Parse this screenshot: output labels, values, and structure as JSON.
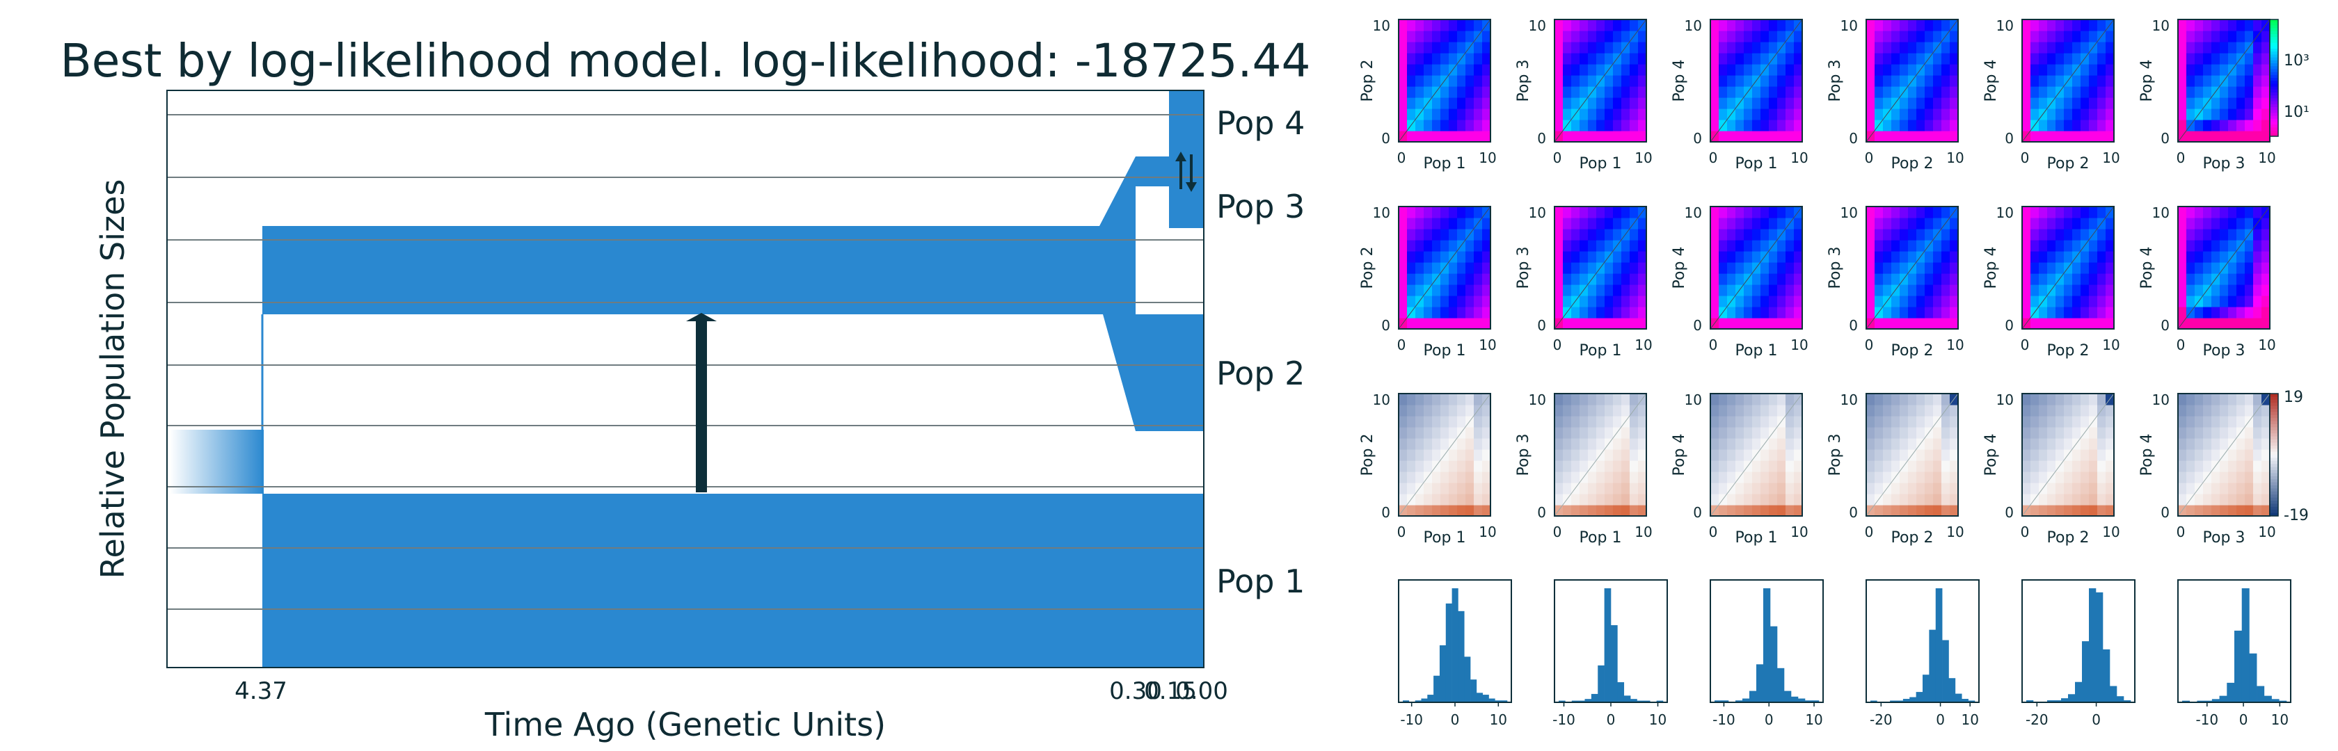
{
  "colors": {
    "pop_fill": "#2a88d0",
    "arrow": "#0d2f3a",
    "line": "#0d2f3a",
    "text": "#0f2b33",
    "gray_line": "#6f7c80"
  },
  "chart_data": [
    {
      "type": "population-history",
      "title": "Best by log-likelihood model. log-likelihood: -18725.44",
      "xlabel": "Time Ago (Genetic Units)",
      "ylabel": "Relative Population Sizes",
      "xtick_labels": [
        "4.37",
        "0.30",
        "0.15",
        "0.00"
      ],
      "populations": [
        "Pop 1",
        "Pop 2",
        "Pop 3",
        "Pop 4"
      ],
      "events": {
        "ancestral_split_time": 4.37,
        "migration_pop1_to_pop2": true,
        "split_pop2_pop3": 0.3,
        "split_pop3_pop4": 0.15,
        "present": 0.0
      }
    },
    {
      "type": "heatmap",
      "panel": "observed 2D SFS",
      "pairs": [
        {
          "x": "Pop 1",
          "y": "Pop 2"
        },
        {
          "x": "Pop 1",
          "y": "Pop 3"
        },
        {
          "x": "Pop 1",
          "y": "Pop 4"
        },
        {
          "x": "Pop 2",
          "y": "Pop 3"
        },
        {
          "x": "Pop 2",
          "y": "Pop 4"
        },
        {
          "x": "Pop 3",
          "y": "Pop 4"
        }
      ],
      "tick_labels": [
        "0",
        "10"
      ],
      "colorbar_labels": [
        "10³",
        "10¹"
      ]
    },
    {
      "type": "heatmap",
      "panel": "model 2D SFS",
      "pairs": [
        {
          "x": "Pop 1",
          "y": "Pop 2"
        },
        {
          "x": "Pop 1",
          "y": "Pop 3"
        },
        {
          "x": "Pop 1",
          "y": "Pop 4"
        },
        {
          "x": "Pop 2",
          "y": "Pop 3"
        },
        {
          "x": "Pop 2",
          "y": "Pop 4"
        },
        {
          "x": "Pop 3",
          "y": "Pop 4"
        }
      ],
      "tick_labels": [
        "0",
        "10"
      ]
    },
    {
      "type": "heatmap",
      "panel": "residuals",
      "pairs": [
        {
          "x": "Pop 1",
          "y": "Pop 2"
        },
        {
          "x": "Pop 1",
          "y": "Pop 3"
        },
        {
          "x": "Pop 1",
          "y": "Pop 4"
        },
        {
          "x": "Pop 2",
          "y": "Pop 3"
        },
        {
          "x": "Pop 2",
          "y": "Pop 4"
        },
        {
          "x": "Pop 3",
          "y": "Pop 4"
        }
      ],
      "tick_labels": [
        "0",
        "10"
      ],
      "colorbar_labels": [
        "19",
        "-19"
      ]
    },
    {
      "type": "bar",
      "panel": "residual histograms",
      "histograms": [
        {
          "xlim": [
            -13,
            13
          ],
          "xticks": [
            "-10",
            "0",
            "10"
          ],
          "values": [
            1,
            0,
            1,
            2,
            4,
            14,
            30,
            52,
            60,
            48,
            24,
            12,
            5,
            4,
            2,
            1,
            1
          ]
        },
        {
          "xlim": [
            -12,
            12
          ],
          "xticks": [
            "-10",
            "0",
            "10"
          ],
          "values": [
            1,
            0,
            1,
            1,
            2,
            5,
            22,
            68,
            46,
            12,
            4,
            2,
            1,
            1,
            0,
            1
          ]
        },
        {
          "xlim": [
            -13,
            12
          ],
          "xticks": [
            "-10",
            "0",
            "10"
          ],
          "values": [
            1,
            1,
            0,
            1,
            2,
            6,
            20,
            60,
            40,
            18,
            6,
            3,
            2,
            1,
            1
          ]
        },
        {
          "xlim": [
            -25,
            13
          ],
          "xticks": [
            "-20",
            "0",
            "10"
          ],
          "values": [
            1,
            0,
            0,
            1,
            1,
            2,
            3,
            6,
            16,
            42,
            66,
            36,
            14,
            5,
            2,
            1
          ]
        },
        {
          "xlim": [
            -25,
            13
          ],
          "xticks": [
            "-20",
            "0"
          ],
          "values": [
            1,
            0,
            0,
            1,
            1,
            2,
            4,
            10,
            30,
            56,
            54,
            26,
            8,
            3,
            1
          ]
        },
        {
          "xlim": [
            -18,
            13
          ],
          "xticks": [
            "-10",
            "0",
            "10"
          ],
          "values": [
            1,
            0,
            1,
            1,
            2,
            4,
            12,
            44,
            70,
            30,
            10,
            4,
            2,
            1
          ]
        }
      ]
    }
  ]
}
